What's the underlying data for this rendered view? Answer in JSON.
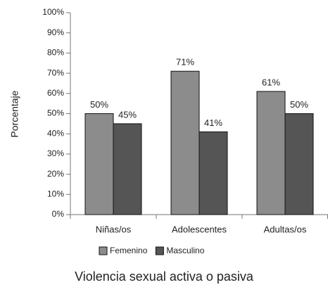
{
  "chart_data": {
    "type": "bar",
    "title": "Violencia sexual activa o pasiva",
    "y_label": "Porcentaje",
    "categories": [
      "Niñas/os",
      "Adolescentes",
      "Adultas/os"
    ],
    "series": [
      {
        "name": "Femenino",
        "color": "#8c8c8c",
        "values": [
          50,
          71,
          61
        ],
        "value_labels": [
          "50%",
          "71%",
          "61%"
        ]
      },
      {
        "name": "Masculino",
        "color": "#555555",
        "values": [
          45,
          41,
          50
        ],
        "value_labels": [
          "45%",
          "41%",
          "50%"
        ]
      }
    ],
    "ylim": [
      0,
      100
    ],
    "yticks": [
      {
        "value": 0,
        "label": "0%"
      },
      {
        "value": 10,
        "label": "10%"
      },
      {
        "value": 20,
        "label": "20%"
      },
      {
        "value": 30,
        "label": "30%"
      },
      {
        "value": 40,
        "label": "40%"
      },
      {
        "value": 50,
        "label": "50%"
      },
      {
        "value": 60,
        "label": "60%"
      },
      {
        "value": 70,
        "label": "70%"
      },
      {
        "value": 80,
        "label": "80%"
      },
      {
        "value": 90,
        "label": "90%"
      },
      {
        "value": 100,
        "label": "100%"
      }
    ],
    "legend": "bottom"
  }
}
